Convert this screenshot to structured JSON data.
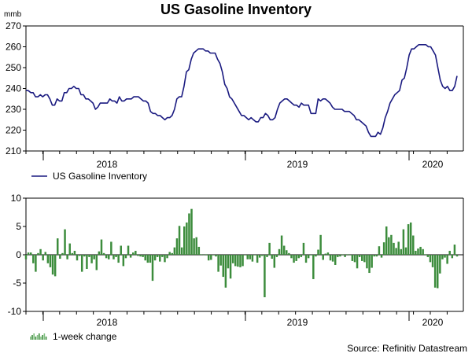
{
  "title": "US Gasoline Inventory",
  "source": "Source: Refinitiv Datastream",
  "colors": {
    "line": "#1a1a80",
    "bar": "#3c8c3c",
    "bar_light": "#7fbf7f",
    "axis": "#000000"
  },
  "chart_data": [
    {
      "type": "line",
      "title": "US Gasoline Inventory",
      "ylabel": "mmb",
      "ylim": [
        210,
        270
      ],
      "yticks": [
        210,
        220,
        230,
        240,
        250,
        260,
        270
      ],
      "x_start": "2017-07",
      "x_end": "2020-03",
      "x_tick_labels": [
        "2018",
        "2019",
        "2020"
      ],
      "series": [
        {
          "name": "US Gasoline Inventory",
          "values": [
            239,
            239,
            238,
            238,
            236,
            236,
            237,
            236,
            237,
            237,
            235,
            232,
            232,
            235,
            234,
            234,
            238,
            238,
            240,
            240,
            241,
            240,
            240,
            237,
            237,
            235,
            235,
            234,
            233,
            230,
            231,
            233,
            233,
            233,
            233,
            235,
            234,
            234,
            233,
            236,
            234,
            234,
            235,
            235,
            235,
            236,
            236,
            236,
            235,
            234,
            234,
            233,
            229,
            228,
            228,
            227,
            227,
            226,
            225,
            226,
            226,
            227,
            230,
            235,
            236,
            236,
            241,
            248,
            249,
            254,
            257,
            258,
            259,
            259,
            259,
            258,
            258,
            257,
            257,
            257,
            254,
            252,
            248,
            242,
            240,
            236,
            235,
            233,
            231,
            229,
            227,
            227,
            226,
            225,
            226,
            225,
            224,
            224,
            226,
            226,
            228,
            227,
            225,
            225,
            226,
            230,
            233,
            234,
            235,
            235,
            234,
            233,
            232,
            232,
            231,
            233,
            232,
            232,
            232,
            228,
            228,
            228,
            235,
            234,
            235,
            235,
            234,
            233,
            231,
            230,
            230,
            230,
            230,
            229,
            229,
            229,
            228,
            227,
            225,
            225,
            224,
            223,
            222,
            219,
            217,
            217,
            217,
            219,
            218,
            221,
            226,
            229,
            233,
            235,
            237,
            238,
            239,
            244,
            245,
            250,
            256,
            259,
            259,
            260,
            261,
            261,
            261,
            261,
            260,
            260,
            258,
            256,
            250,
            244,
            241,
            240,
            241,
            239,
            239,
            241,
            246
          ]
        }
      ],
      "legend": "US Gasoline Inventory"
    },
    {
      "type": "bar",
      "title": "1-week change",
      "ylim": [
        -10,
        10
      ],
      "yticks": [
        -10,
        -5,
        0,
        5,
        10
      ],
      "x_tick_labels": [
        "2018",
        "2019",
        "2020"
      ],
      "series": [
        {
          "name": "1-week change",
          "values": [
            -0.8,
            0.4,
            0.4,
            -1.5,
            -3.0,
            0.3,
            1.0,
            -1.0,
            0.5,
            -1.5,
            -2.2,
            -3.5,
            -3.8,
            2.9,
            -0.7,
            0.3,
            4.5,
            -0.8,
            2.0,
            0.3,
            0.7,
            -1.0,
            -0.2,
            -3.0,
            -0.3,
            -2.5,
            -0.4,
            -1.5,
            -0.8,
            -2.7,
            0.6,
            2.7,
            0.3,
            -0.6,
            -0.8,
            2.3,
            -0.8,
            -0.4,
            -1.4,
            1.6,
            -2.0,
            -0.6,
            1.6,
            -0.5,
            0.4,
            0.7,
            -0.2,
            -0.3,
            -0.4,
            -1.0,
            -1.4,
            -1.4,
            -4.6,
            -1.0,
            -0.4,
            -1.2,
            -0.4,
            -1.3,
            -0.6,
            0.5,
            0.3,
            1.3,
            2.9,
            5.1,
            1.3,
            5.0,
            5.7,
            7.3,
            8.1,
            2.9,
            3.1,
            1.4,
            0.1,
            -0.1,
            0.1,
            -1.0,
            -0.9,
            -0.1,
            -0.3,
            -3.0,
            -1.9,
            -3.9,
            -5.8,
            -2.4,
            -4.2,
            -1.5,
            -2.0,
            -2.1,
            -2.2,
            -2.0,
            -0.1,
            -0.8,
            -0.8,
            -1.2,
            -0.1,
            -1.4,
            -0.5,
            -0.2,
            -7.5,
            -0.4,
            2.1,
            -0.7,
            -2.3,
            -0.4,
            1.0,
            3.4,
            1.6,
            0.8,
            0.3,
            -0.6,
            -1.4,
            -1.1,
            -0.6,
            -0.4,
            2.1,
            -1.4,
            -0.6,
            -0.1,
            -4.3,
            -0.3,
            0.9,
            3.5,
            -0.9,
            0.2,
            0.4,
            -1.0,
            -1.2,
            -1.8,
            -0.4,
            -0.3,
            0.1,
            -0.4,
            0.1,
            -0.1,
            -1.1,
            -1.3,
            -2.4,
            -0.4,
            -1.1,
            -1.3,
            -2.4,
            -3.2,
            -2.3,
            -0.3,
            -0.3,
            1.5,
            -0.5,
            2.2,
            5.0,
            3.1,
            3.5,
            2.1,
            1.2,
            2.3,
            1.0,
            4.5,
            1.3,
            5.4,
            5.7,
            3.4,
            0.7,
            1.1,
            1.4,
            1.0,
            0.1,
            -0.4,
            -1.3,
            -2.2,
            -5.8,
            -5.9,
            -3.3,
            -0.8,
            -0.5,
            -1.6,
            0.7,
            -0.6,
            1.8,
            -0.3
          ]
        }
      ],
      "legend": "1-week change"
    }
  ]
}
